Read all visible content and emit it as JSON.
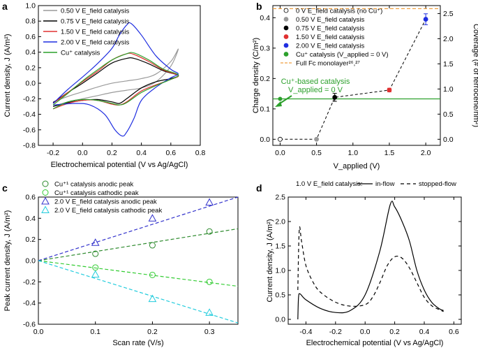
{
  "chart_data": [
    {
      "panel": "a",
      "type": "line",
      "xlabel": "Electrochemical potential (V vs Ag/AgCl)",
      "ylabel": "Current density, J (A/m²)",
      "xlim": [
        -0.3,
        0.8
      ],
      "ylim": [
        -0.8,
        1.0
      ],
      "xticks": [
        "-0.2",
        "0.0",
        "0.2",
        "0.4",
        "0.6",
        "0.8"
      ],
      "yticks": [
        "-0.8",
        "-0.6",
        "-0.4",
        "-0.2",
        "0.0",
        "0.2",
        "0.4",
        "0.6",
        "0.8",
        "1.0"
      ],
      "legend": [
        "0.50 V E_field catalysis",
        "0.75 V E_field catalysis",
        "1.50 V E_field catalysis",
        "2.00 V E_field catalysis",
        "Cu⁺ catalysis"
      ],
      "series": [
        {
          "name": "0.50 V E_field catalysis",
          "color": "#9a9a9a",
          "upper": [
            [
              -0.2,
              -0.24
            ],
            [
              -0.1,
              -0.17
            ],
            [
              0.0,
              -0.11
            ],
            [
              0.1,
              -0.05
            ],
            [
              0.2,
              0.0
            ],
            [
              0.3,
              0.03
            ],
            [
              0.4,
              0.06
            ],
            [
              0.5,
              0.12
            ],
            [
              0.6,
              0.28
            ],
            [
              0.65,
              0.44
            ]
          ],
          "lower": [
            [
              0.65,
              0.44
            ],
            [
              0.6,
              0.22
            ],
            [
              0.5,
              0.02
            ],
            [
              0.4,
              -0.06
            ],
            [
              0.3,
              -0.09
            ],
            [
              0.2,
              -0.12
            ],
            [
              0.1,
              -0.16
            ],
            [
              0.0,
              -0.2
            ],
            [
              -0.1,
              -0.24
            ],
            [
              -0.2,
              -0.3
            ]
          ]
        },
        {
          "name": "0.75 V E_field catalysis",
          "color": "#000000",
          "upper": [
            [
              -0.2,
              -0.25
            ],
            [
              -0.1,
              -0.12
            ],
            [
              0.0,
              0.0
            ],
            [
              0.1,
              0.13
            ],
            [
              0.2,
              0.26
            ],
            [
              0.3,
              0.32
            ],
            [
              0.35,
              0.32
            ],
            [
              0.45,
              0.25
            ],
            [
              0.55,
              0.16
            ],
            [
              0.65,
              0.1
            ]
          ],
          "lower": [
            [
              0.65,
              0.1
            ],
            [
              0.6,
              0.06
            ],
            [
              0.5,
              0.02
            ],
            [
              0.4,
              -0.06
            ],
            [
              0.3,
              -0.2
            ],
            [
              0.25,
              -0.26
            ],
            [
              0.2,
              -0.24
            ],
            [
              0.1,
              -0.21
            ],
            [
              0.0,
              -0.22
            ],
            [
              -0.1,
              -0.25
            ],
            [
              -0.2,
              -0.3
            ]
          ]
        },
        {
          "name": "1.50 V E_field catalysis",
          "color": "#e03030",
          "upper": [
            [
              -0.2,
              -0.26
            ],
            [
              -0.1,
              -0.12
            ],
            [
              0.0,
              0.02
            ],
            [
              0.1,
              0.15
            ],
            [
              0.2,
              0.3
            ],
            [
              0.3,
              0.38
            ],
            [
              0.35,
              0.37
            ],
            [
              0.45,
              0.28
            ],
            [
              0.55,
              0.17
            ],
            [
              0.65,
              0.1
            ]
          ],
          "lower": [
            [
              0.65,
              0.1
            ],
            [
              0.6,
              0.05
            ],
            [
              0.5,
              -0.02
            ],
            [
              0.4,
              -0.1
            ],
            [
              0.3,
              -0.24
            ],
            [
              0.25,
              -0.28
            ],
            [
              0.2,
              -0.27
            ],
            [
              0.1,
              -0.22
            ],
            [
              0.0,
              -0.22
            ],
            [
              -0.1,
              -0.26
            ],
            [
              -0.2,
              -0.33
            ]
          ]
        },
        {
          "name": "2.00 V E_field catalysis",
          "color": "#1f2ee0",
          "upper": [
            [
              -0.2,
              -0.26
            ],
            [
              -0.1,
              -0.08
            ],
            [
              0.0,
              0.08
            ],
            [
              0.1,
              0.25
            ],
            [
              0.2,
              0.45
            ],
            [
              0.25,
              0.62
            ],
            [
              0.3,
              0.75
            ],
            [
              0.33,
              0.77
            ],
            [
              0.4,
              0.62
            ],
            [
              0.5,
              0.35
            ],
            [
              0.6,
              0.18
            ],
            [
              0.65,
              0.12
            ]
          ],
          "lower": [
            [
              0.65,
              0.12
            ],
            [
              0.6,
              0.07
            ],
            [
              0.5,
              -0.05
            ],
            [
              0.4,
              -0.22
            ],
            [
              0.35,
              -0.45
            ],
            [
              0.3,
              -0.63
            ],
            [
              0.27,
              -0.68
            ],
            [
              0.22,
              -0.6
            ],
            [
              0.15,
              -0.4
            ],
            [
              0.05,
              -0.28
            ],
            [
              -0.05,
              -0.26
            ],
            [
              -0.2,
              -0.28
            ]
          ]
        },
        {
          "name": "Cu⁺ catalysis",
          "color": "#2ca02c",
          "upper": [
            [
              -0.2,
              -0.28
            ],
            [
              -0.1,
              -0.13
            ],
            [
              0.0,
              0.03
            ],
            [
              0.1,
              0.17
            ],
            [
              0.2,
              0.3
            ],
            [
              0.3,
              0.38
            ],
            [
              0.35,
              0.39
            ],
            [
              0.45,
              0.3
            ],
            [
              0.55,
              0.18
            ],
            [
              0.65,
              0.11
            ]
          ],
          "lower": [
            [
              0.65,
              0.11
            ],
            [
              0.6,
              0.05
            ],
            [
              0.5,
              -0.03
            ],
            [
              0.4,
              -0.12
            ],
            [
              0.3,
              -0.25
            ],
            [
              0.25,
              -0.28
            ],
            [
              0.2,
              -0.26
            ],
            [
              0.1,
              -0.22
            ],
            [
              0.0,
              -0.21
            ],
            [
              -0.1,
              -0.24
            ],
            [
              -0.2,
              -0.33
            ]
          ]
        }
      ]
    },
    {
      "panel": "b",
      "type": "scatter",
      "xlabel": "V_applied (V)",
      "ylabel": "Charge density (C/m²)",
      "y2label": "Coverage (# of ferrocene/nm²)",
      "xlim": [
        -0.1,
        2.2
      ],
      "ylim": [
        -0.02,
        0.44
      ],
      "xticks": [
        "0.0",
        "0.5",
        "1.0",
        "1.5",
        "2.0"
      ],
      "yticks": [
        "0.0",
        "0.1",
        "0.2",
        "0.3",
        "0.4"
      ],
      "y2ticks": [
        "0.0",
        "0.5",
        "1.0",
        "1.5",
        "2.0",
        "2.5"
      ],
      "legend": [
        "0 V E_field catalysis (no Cu⁺)",
        "0.50 V E_field catalysis",
        "0.75 V E_field catalysis",
        "1.50 V E_field catalysis",
        "2.00 V E_field catalysis",
        "Cu⁺ catalysis (V_applied = 0 V)",
        "Full Fc monolayer²⁶,²⁷"
      ],
      "points": [
        {
          "x": 0.0,
          "y": 0.0,
          "err": 0,
          "color": "#ffffff"
        },
        {
          "x": 0.5,
          "y": 0.0,
          "err": 0,
          "color": "#9a9a9a"
        },
        {
          "x": 0.75,
          "y": 0.138,
          "err": 0.013,
          "color": "#000000"
        },
        {
          "x": 1.5,
          "y": 0.162,
          "err": 0.006,
          "color": "#e03030"
        },
        {
          "x": 2.0,
          "y": 0.395,
          "err": 0.018,
          "color": "#1f2ee0"
        }
      ],
      "cu_point": {
        "x": 0.0,
        "y": 0.133,
        "color": "#2ca02c"
      },
      "cu_line": 0.133,
      "full_monolayer": 0.43,
      "annotation": "Cu⁺-based catalysis",
      "annotation2": "V_applied = 0 V"
    },
    {
      "panel": "c",
      "type": "scatter",
      "xlabel": "Scan rate (V/s)",
      "ylabel": "Peak current density, J (A/m²)",
      "xlim": [
        0.0,
        0.35
      ],
      "ylim": [
        -0.6,
        0.6
      ],
      "xticks": [
        "0.0",
        "0.1",
        "0.2",
        "0.3"
      ],
      "yticks": [
        "-0.6",
        "-0.4",
        "-0.2",
        "0.0",
        "0.2",
        "0.4",
        "0.6"
      ],
      "legend": [
        "Cu⁺¹ catalysis anodic peak",
        "Cu⁺¹ catalysis cathodic peak",
        "2.0 V E_field catalysis anodic peak",
        "2.0 V E_field catalysis cathodic peak"
      ],
      "series": [
        {
          "name": "Cu⁺¹ catalysis anodic peak",
          "marker": "circle",
          "color": "#2d8a2d",
          "x": [
            0.1,
            0.2,
            0.3
          ],
          "y": [
            0.065,
            0.145,
            0.275
          ],
          "slope": 0.86
        },
        {
          "name": "Cu⁺¹ catalysis cathodic peak",
          "marker": "circle",
          "color": "#33cc33",
          "x": [
            0.1,
            0.2,
            0.3
          ],
          "y": [
            -0.065,
            -0.135,
            -0.2
          ],
          "slope": -0.69
        },
        {
          "name": "2.0 V E_field catalysis anodic peak",
          "marker": "triangle",
          "color": "#3333cc",
          "x": [
            0.1,
            0.2,
            0.3
          ],
          "y": [
            0.17,
            0.4,
            0.55
          ],
          "slope": 1.93
        },
        {
          "name": "2.0 V E_field catalysis cathodic peak",
          "marker": "triangle",
          "color": "#22ccdd",
          "x": [
            0.1,
            0.2,
            0.3
          ],
          "y": [
            -0.13,
            -0.36,
            -0.49
          ],
          "slope": -1.68
        }
      ]
    },
    {
      "panel": "d",
      "type": "line",
      "xlabel": "Electrochemical potential (V vs Ag/AgCl)",
      "ylabel": "Current density, J (A/m²)",
      "xlim": [
        -0.52,
        0.65
      ],
      "ylim": [
        -0.1,
        2.5
      ],
      "xticks": [
        "-0.4",
        "-0.2",
        "0.0",
        "0.2",
        "0.4",
        "0.6"
      ],
      "yticks": [
        "0.0",
        "0.5",
        "1.0",
        "1.5",
        "2.0",
        "2.5"
      ],
      "legend_title": "1.0 V E_field catalysis:",
      "legend": [
        "in-flow",
        "stopped-flow"
      ],
      "series": [
        {
          "name": "in-flow",
          "dash": "none",
          "points": [
            [
              -0.455,
              0.0
            ],
            [
              -0.45,
              0.45
            ],
            [
              -0.44,
              0.52
            ],
            [
              -0.4,
              0.4
            ],
            [
              -0.3,
              0.22
            ],
            [
              -0.2,
              0.14
            ],
            [
              -0.1,
              0.18
            ],
            [
              0.0,
              0.5
            ],
            [
              0.1,
              1.4
            ],
            [
              0.17,
              2.35
            ],
            [
              0.2,
              2.3
            ],
            [
              0.25,
              2.0
            ],
            [
              0.3,
              1.6
            ],
            [
              0.35,
              1.0
            ],
            [
              0.4,
              0.6
            ],
            [
              0.45,
              0.35
            ],
            [
              0.5,
              0.22
            ],
            [
              0.53,
              0.18
            ]
          ]
        },
        {
          "name": "stopped-flow",
          "dash": "5,4",
          "points": [
            [
              -0.455,
              0.6
            ],
            [
              -0.445,
              1.84
            ],
            [
              -0.43,
              1.6
            ],
            [
              -0.4,
              1.1
            ],
            [
              -0.35,
              0.75
            ],
            [
              -0.3,
              0.55
            ],
            [
              -0.2,
              0.35
            ],
            [
              -0.1,
              0.27
            ],
            [
              0.0,
              0.3
            ],
            [
              0.05,
              0.45
            ],
            [
              0.1,
              0.75
            ],
            [
              0.15,
              1.1
            ],
            [
              0.2,
              1.28
            ],
            [
              0.25,
              1.25
            ],
            [
              0.3,
              1.05
            ],
            [
              0.35,
              0.75
            ],
            [
              0.4,
              0.45
            ],
            [
              0.45,
              0.28
            ],
            [
              0.5,
              0.2
            ],
            [
              0.53,
              0.16
            ]
          ]
        }
      ]
    }
  ]
}
